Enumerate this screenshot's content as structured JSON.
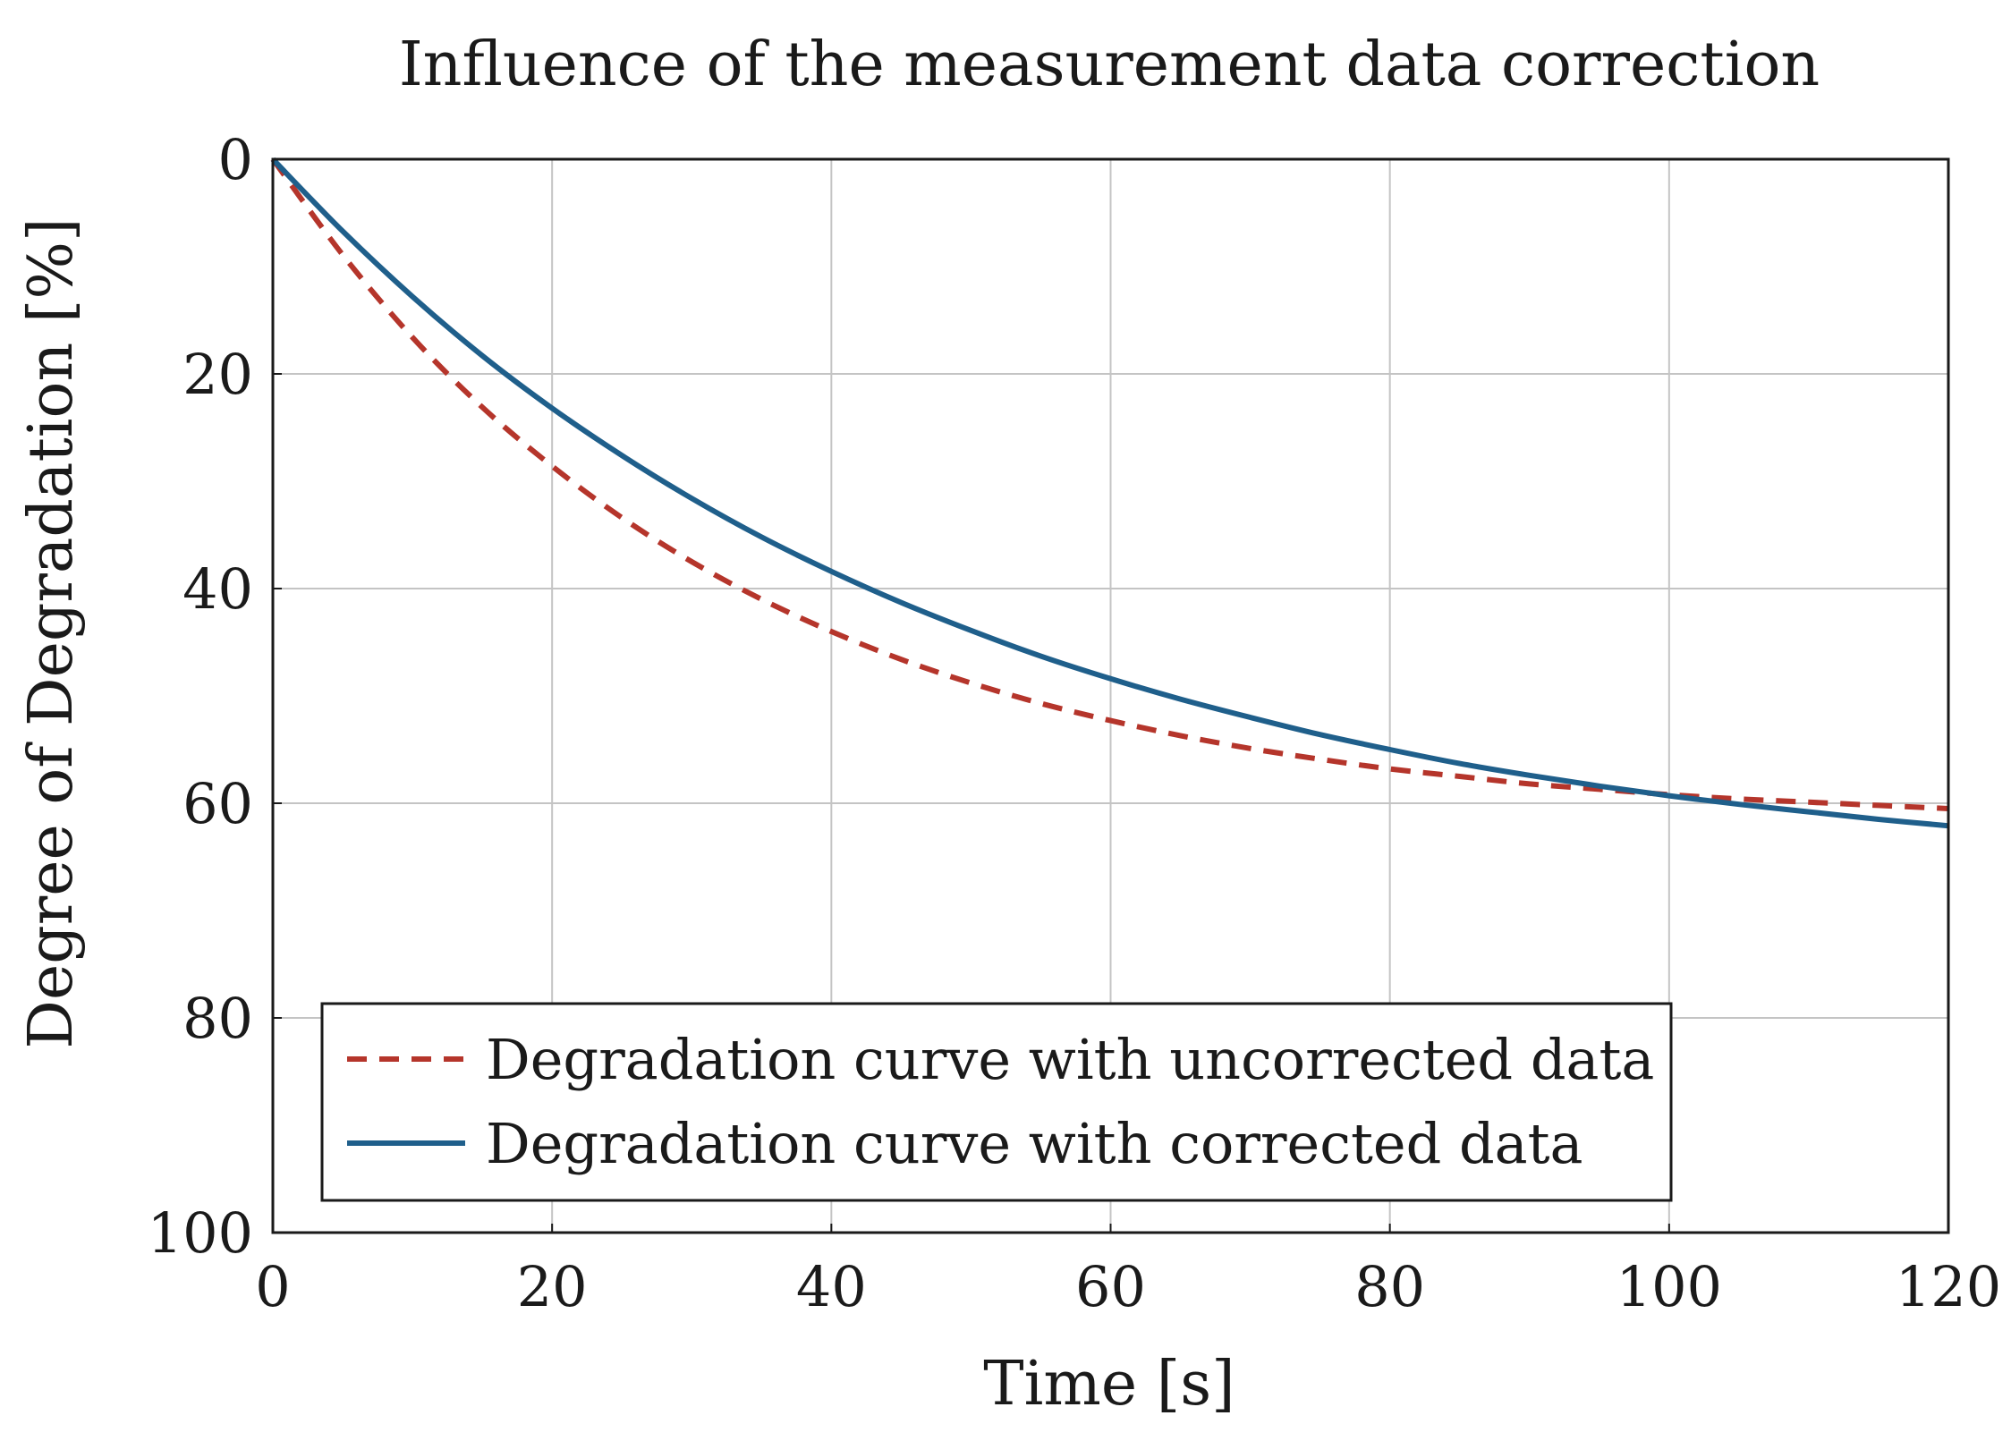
{
  "chart_data": {
    "type": "line",
    "title": "Influence of the measurement data correction",
    "xlabel": "Time [s]",
    "ylabel": "Degree of Degradation [%]",
    "xlim": [
      0,
      120
    ],
    "ylim": [
      0,
      100
    ],
    "y_axis_inverted": true,
    "grid": true,
    "legend_position": "bottom-left",
    "x_ticks": [
      "0",
      "20",
      "40",
      "60",
      "80",
      "100",
      "120"
    ],
    "y_ticks": [
      "0",
      "20",
      "40",
      "60",
      "80",
      "100"
    ],
    "x": [
      0,
      5,
      10,
      15,
      20,
      25,
      30,
      35,
      40,
      45,
      50,
      55,
      60,
      65,
      70,
      75,
      80,
      85,
      90,
      95,
      100,
      105,
      110,
      115,
      120
    ],
    "series": [
      {
        "name": "Degradation curve with uncorrected data",
        "color": "#b5352b",
        "style": "dashed",
        "values": [
          0,
          8.9,
          16.6,
          23.1,
          28.6,
          33.4,
          37.5,
          41.0,
          44.0,
          46.6,
          48.8,
          50.7,
          52.3,
          53.7,
          54.9,
          55.9,
          56.8,
          57.5,
          58.2,
          58.7,
          59.2,
          59.6,
          59.9,
          60.2,
          60.5
        ]
      },
      {
        "name": "Degradation curve with corrected data",
        "color": "#1f5f8b",
        "style": "solid",
        "values": [
          0,
          6.7,
          12.8,
          18.3,
          23.2,
          27.6,
          31.6,
          35.2,
          38.4,
          41.3,
          43.9,
          46.3,
          48.4,
          50.3,
          52.0,
          53.6,
          55.0,
          56.3,
          57.4,
          58.4,
          59.3,
          60.1,
          60.8,
          61.5,
          62.1
        ]
      }
    ]
  }
}
